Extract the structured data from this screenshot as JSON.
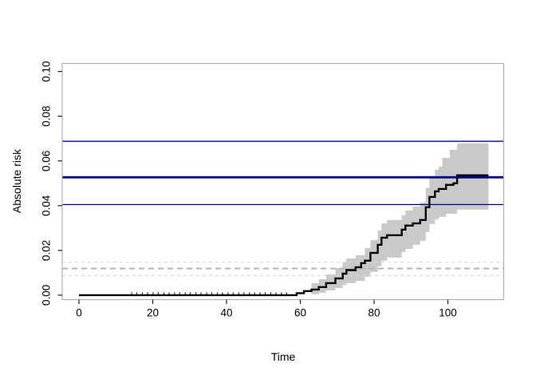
{
  "figure": {
    "background": "#ffffff"
  },
  "chart_data": {
    "type": "line",
    "subtype": "step-cumulative-incidence-with-confidence-band",
    "title": "",
    "xlabel": "Time",
    "ylabel": "Absolute risk",
    "xlim": [
      -4.54,
      115.13
    ],
    "ylim": [
      -0.002,
      0.1036
    ],
    "x_ticks": [
      0,
      20,
      40,
      60,
      80,
      100
    ],
    "x_tick_labels": [
      "0",
      "20",
      "40",
      "60",
      "80",
      "100"
    ],
    "y_ticks": [
      0,
      0.02,
      0.04,
      0.06,
      0.08,
      0.1
    ],
    "y_tick_labels": [
      "0.00",
      "0.02",
      "0.04",
      "0.06",
      "0.08",
      "0.10"
    ],
    "grid": false,
    "legend": null,
    "colors": {
      "curve": "#000000",
      "band": "#c9c9c9",
      "reference_navy": "#00008B",
      "dash_outer": "#d9d9d9",
      "dash_center": "#b3b3b3",
      "box": "#b0b0b0",
      "axis": "#222222"
    },
    "series": [
      {
        "name": "absolute-risk-curve",
        "type": "step",
        "color": "#000000",
        "line_width": 2.4,
        "points": [
          [
            0,
            0
          ],
          [
            59,
            0.0009
          ],
          [
            61,
            0.0018
          ],
          [
            63,
            0.0025
          ],
          [
            65,
            0.0036
          ],
          [
            67,
            0.0054
          ],
          [
            69.5,
            0.0075
          ],
          [
            71.5,
            0.0096
          ],
          [
            72.5,
            0.0112
          ],
          [
            75,
            0.0125
          ],
          [
            76.5,
            0.0143
          ],
          [
            77.5,
            0.0154
          ],
          [
            79,
            0.0189
          ],
          [
            81,
            0.0225
          ],
          [
            82,
            0.0257
          ],
          [
            83.5,
            0.0268
          ],
          [
            87.5,
            0.0293
          ],
          [
            88.5,
            0.0311
          ],
          [
            90.5,
            0.0321
          ],
          [
            92.5,
            0.0336
          ],
          [
            94,
            0.0393
          ],
          [
            95,
            0.0439
          ],
          [
            96.5,
            0.0464
          ],
          [
            97.5,
            0.0475
          ],
          [
            99.5,
            0.0493
          ],
          [
            101.5,
            0.05
          ],
          [
            102.5,
            0.0536
          ],
          [
            111,
            0.0536
          ]
        ]
      },
      {
        "name": "confidence-band-lower",
        "type": "step",
        "color": "#c9c9c9",
        "points": [
          [
            63,
            0.0004
          ],
          [
            65,
            0.0011
          ],
          [
            67,
            0.0021
          ],
          [
            69.5,
            0.0032
          ],
          [
            71.5,
            0.0046
          ],
          [
            72.5,
            0.0054
          ],
          [
            75,
            0.0064
          ],
          [
            77.5,
            0.0082
          ],
          [
            79,
            0.0104
          ],
          [
            81,
            0.0129
          ],
          [
            82,
            0.0154
          ],
          [
            83.5,
            0.0168
          ],
          [
            87.5,
            0.0193
          ],
          [
            88.5,
            0.0207
          ],
          [
            90.5,
            0.0225
          ],
          [
            92.5,
            0.0243
          ],
          [
            94,
            0.0282
          ],
          [
            95,
            0.0318
          ],
          [
            96.5,
            0.0339
          ],
          [
            97.5,
            0.035
          ],
          [
            99.5,
            0.0364
          ],
          [
            102.5,
            0.0382
          ],
          [
            111,
            0.0382
          ]
        ]
      },
      {
        "name": "confidence-band-upper",
        "type": "step",
        "color": "#c9c9c9",
        "points": [
          [
            63,
            0.0054
          ],
          [
            65,
            0.0071
          ],
          [
            67,
            0.0093
          ],
          [
            69.5,
            0.0121
          ],
          [
            71.5,
            0.0146
          ],
          [
            72.5,
            0.0164
          ],
          [
            75,
            0.0179
          ],
          [
            77.5,
            0.0211
          ],
          [
            79,
            0.0246
          ],
          [
            81,
            0.0289
          ],
          [
            82,
            0.0321
          ],
          [
            83.5,
            0.0336
          ],
          [
            87.5,
            0.0357
          ],
          [
            88.5,
            0.0379
          ],
          [
            90.5,
            0.0396
          ],
          [
            92.5,
            0.0414
          ],
          [
            94,
            0.0479
          ],
          [
            95,
            0.0532
          ],
          [
            96.5,
            0.0561
          ],
          [
            97.5,
            0.0575
          ],
          [
            98.5,
            0.0614
          ],
          [
            100.5,
            0.065
          ],
          [
            102.5,
            0.0679
          ],
          [
            111,
            0.0679
          ]
        ]
      }
    ],
    "reference_lines": [
      {
        "name": "navy-upper",
        "value": 0.0688,
        "style": "solid",
        "color": "#00008B",
        "width": 1.3
      },
      {
        "name": "navy-center",
        "value": 0.0527,
        "style": "solid",
        "color": "#00008B",
        "width": 2.8
      },
      {
        "name": "navy-lower",
        "value": 0.0405,
        "style": "solid",
        "color": "#00008B",
        "width": 1.3
      },
      {
        "name": "gray-dashed-upper",
        "value": 0.0148,
        "style": "dashed",
        "color": "#d9d9d9",
        "width": 1.2,
        "dash": "4,4"
      },
      {
        "name": "gray-dashed-center",
        "value": 0.0119,
        "style": "dashed",
        "color": "#b3b3b3",
        "width": 2,
        "dash": "7,5"
      },
      {
        "name": "gray-dashed-lower",
        "value": 0.0087,
        "style": "dashed",
        "color": "#d9d9d9",
        "width": 1.2,
        "dash": "4,4"
      }
    ],
    "censor_times": [
      14.3,
      15.7,
      17.2,
      18.6,
      20.1,
      21.5,
      23,
      24.4,
      25.9,
      27.3,
      28.8,
      30.2,
      31.7,
      33.1,
      34.6,
      36,
      37.5,
      38.9,
      40.4,
      41.8,
      43.3,
      44.7,
      46.2,
      47.6,
      49.1,
      50.5,
      52,
      53.4,
      54.9,
      56.3
    ]
  }
}
